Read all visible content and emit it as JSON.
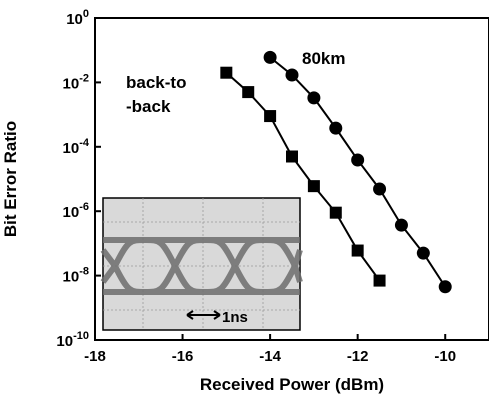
{
  "chart_data": {
    "type": "line",
    "yscale": "log",
    "x_label": "Received Power (dBm)",
    "y_label": "Bit Error Ratio",
    "xlim": [
      -18,
      -9
    ],
    "xticks": [
      -18,
      -16,
      -14,
      -12,
      -10
    ],
    "ylim": [
      1e-10,
      1
    ],
    "yticks": [
      {
        "value": 1,
        "label": "10",
        "exponent": "0"
      },
      {
        "value": 0.01,
        "label": "10",
        "exponent": "-2"
      },
      {
        "value": 0.0001,
        "label": "10",
        "exponent": "-4"
      },
      {
        "value": 1e-06,
        "label": "10",
        "exponent": "-6"
      },
      {
        "value": 1e-08,
        "label": "10",
        "exponent": "-8"
      },
      {
        "value": 1e-10,
        "label": "10",
        "exponent": "-10"
      }
    ],
    "series": [
      {
        "color": "#000000",
        "marker": "square",
        "x": [
          -15,
          -14.5,
          -14,
          -13.5,
          -13,
          -12.5,
          -12,
          -11.5
        ],
        "values": [
          0.02,
          0.005,
          0.0009,
          5e-05,
          6e-06,
          9e-07,
          6e-08,
          7e-09
        ]
      },
      {
        "color": "#000000",
        "marker": "circle",
        "x": [
          -14,
          -13.5,
          -13,
          -12.5,
          -12,
          -11.5,
          -11,
          -10.5,
          -10
        ],
        "values": [
          0.06,
          0.017,
          0.0033,
          0.00038,
          3.9e-05,
          4.9e-06,
          3.7e-07,
          5e-08,
          4.5e-09
        ]
      }
    ],
    "annotations": [
      "back-to",
      "-back",
      "80km",
      "1ns"
    ]
  }
}
